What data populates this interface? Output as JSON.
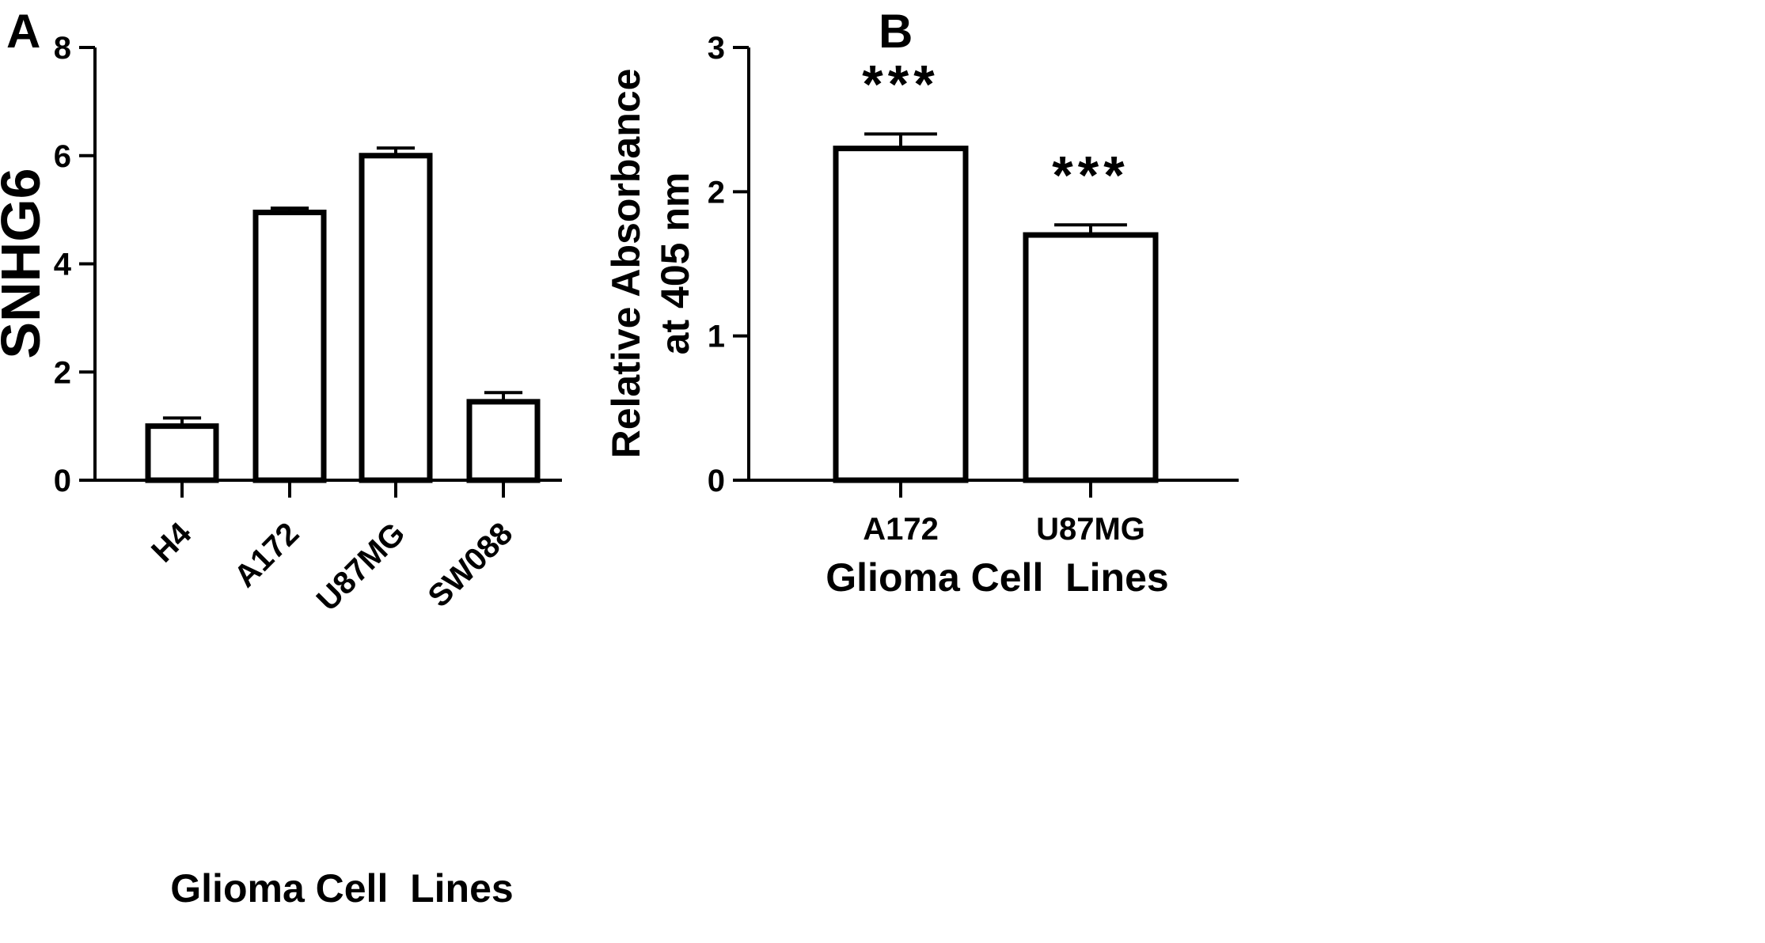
{
  "chart_data": [
    {
      "panel": "A",
      "type": "bar",
      "categories": [
        "H4",
        "A172",
        "U87MG",
        "SW088"
      ],
      "values": [
        1.0,
        4.95,
        6.0,
        1.45
      ],
      "errors": [
        0.15,
        0.08,
        0.14,
        0.17
      ],
      "xlabel": "Glioma Cell  Lines",
      "ylabel": "SNHG6",
      "ylim": [
        0,
        8
      ],
      "yticks": [
        "0",
        "2",
        "4",
        "6",
        "8"
      ],
      "bar_fill": "#ffffff",
      "bar_stroke": "#000000",
      "grid": false
    },
    {
      "panel": "B",
      "type": "bar",
      "categories": [
        "A172",
        "U87MG"
      ],
      "values": [
        2.3,
        1.7
      ],
      "errors": [
        0.1,
        0.07
      ],
      "annotations": [
        "***",
        "***"
      ],
      "xlabel": "Glioma Cell  Lines",
      "ylabel": [
        "Relative Absorbance",
        "at 405 nm"
      ],
      "ylim": [
        0,
        3
      ],
      "yticks": [
        "0",
        "1",
        "2",
        "3"
      ],
      "bar_fill": "#ffffff",
      "bar_stroke": "#000000",
      "grid": false
    }
  ]
}
